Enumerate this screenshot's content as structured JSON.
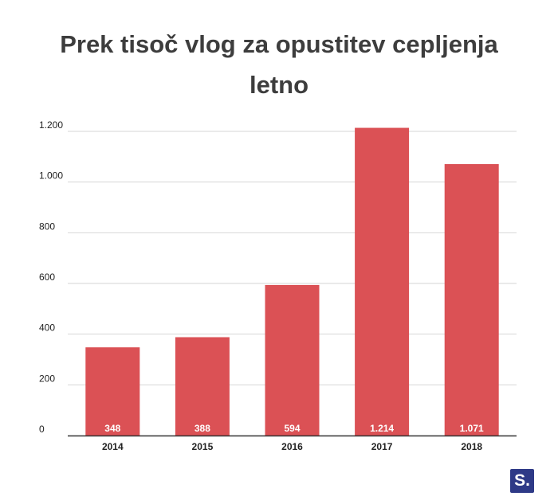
{
  "chart_data": {
    "type": "bar",
    "title": "Prek tisoč vlog za opustitev cepljenja letno",
    "categories": [
      "2014",
      "2015",
      "2016",
      "2017",
      "2018"
    ],
    "values": [
      348,
      388,
      594,
      1214,
      1071
    ],
    "value_labels": [
      "348",
      "388",
      "594",
      "1.214",
      "1.071"
    ],
    "ylim": [
      0,
      1200
    ],
    "yticks": [
      0,
      200,
      400,
      600,
      800,
      1000,
      1200
    ],
    "ytick_labels": [
      "0",
      "200",
      "400",
      "600",
      "800",
      "1.000",
      "1.200"
    ],
    "xlabel": "",
    "ylabel": "",
    "grid": true,
    "bar_color": "#db5155"
  },
  "logo": {
    "text": "S.",
    "color": "#2e3a87"
  }
}
